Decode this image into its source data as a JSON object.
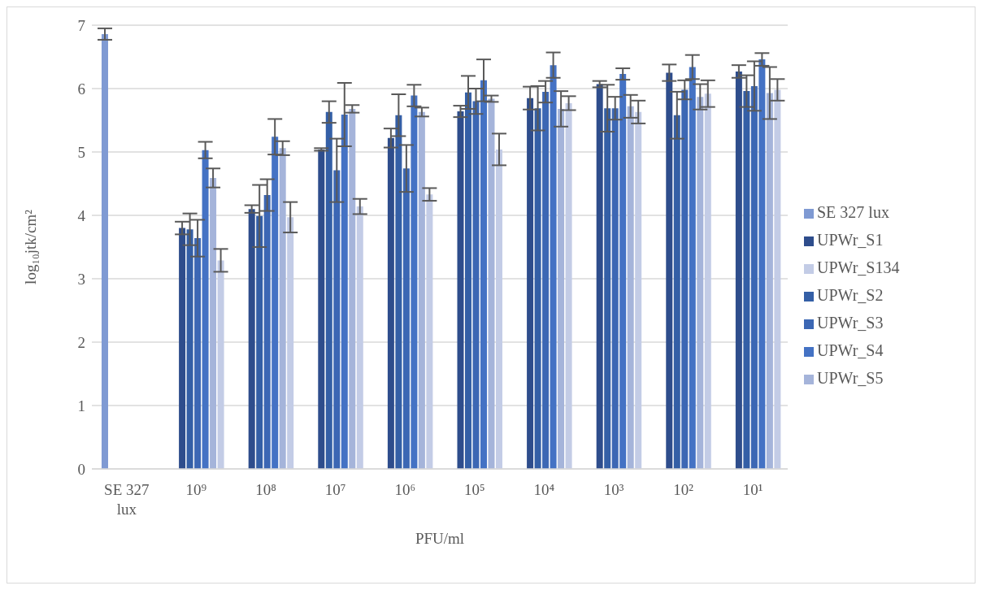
{
  "chart_data": {
    "type": "bar",
    "xlabel": "PFU/ml",
    "ylabel": "log₁₀jtk/cm²",
    "categories": [
      "SE 327 lux",
      "10⁹",
      "10⁸",
      "10⁷",
      "10⁶",
      "10⁵",
      "10⁴",
      "10³",
      "10²",
      "10¹"
    ],
    "series": [
      {
        "name": "SE 327 lux",
        "color": "#7f9ad3",
        "values": [
          6.86,
          null,
          null,
          null,
          null,
          null,
          null,
          null,
          null,
          null
        ],
        "errors": [
          0.09,
          null,
          null,
          null,
          null,
          null,
          null,
          null,
          null,
          null
        ]
      },
      {
        "name": "UPWr_S1",
        "color": "#2e4d8c",
        "values": [
          0,
          3.8,
          4.1,
          5.04,
          5.22,
          5.64,
          5.85,
          6.07,
          6.25,
          6.27
        ],
        "errors": [
          null,
          0.1,
          0.06,
          0.02,
          0.15,
          0.09,
          0.18,
          0.05,
          0.13,
          0.1
        ]
      },
      {
        "name": "UPWr_S2",
        "color": "#345fa6",
        "values": [
          0,
          3.78,
          3.99,
          5.63,
          5.58,
          5.94,
          5.69,
          5.69,
          5.58,
          5.96
        ],
        "errors": [
          null,
          0.25,
          0.49,
          0.17,
          0.33,
          0.26,
          0.35,
          0.37,
          0.37,
          0.25
        ]
      },
      {
        "name": "UPWr_S3",
        "color": "#3c67b4",
        "values": [
          0,
          3.64,
          4.32,
          4.71,
          4.74,
          5.8,
          5.95,
          5.69,
          5.98,
          6.04
        ],
        "errors": [
          null,
          0.29,
          0.25,
          0.5,
          0.37,
          0.2,
          0.17,
          0.18,
          0.15,
          0.39
        ]
      },
      {
        "name": "UPWr_S4",
        "color": "#4472c4",
        "values": [
          0,
          5.03,
          5.24,
          5.59,
          5.89,
          6.13,
          6.37,
          6.23,
          6.34,
          6.46
        ],
        "errors": [
          null,
          0.13,
          0.28,
          0.5,
          0.17,
          0.33,
          0.2,
          0.09,
          0.19,
          0.1
        ]
      },
      {
        "name": "UPWr_S5",
        "color": "#a5b4da",
        "values": [
          0,
          4.59,
          5.06,
          5.68,
          5.63,
          5.84,
          5.68,
          5.72,
          5.87,
          5.93
        ],
        "errors": [
          null,
          0.15,
          0.11,
          0.06,
          0.07,
          0.05,
          0.28,
          0.18,
          0.2,
          0.41
        ]
      },
      {
        "name": "UPWr_S134",
        "color": "#c3cce6",
        "values": [
          0,
          3.29,
          3.97,
          4.14,
          4.33,
          5.04,
          5.77,
          5.63,
          5.92,
          5.98
        ],
        "errors": [
          null,
          0.18,
          0.24,
          0.12,
          0.1,
          0.25,
          0.11,
          0.18,
          0.21,
          0.17
        ]
      }
    ],
    "ylim": [
      0,
      7
    ],
    "yticks": [
      0,
      1,
      2,
      3,
      4,
      5,
      6,
      7
    ],
    "grid": "y",
    "legend": "right"
  }
}
